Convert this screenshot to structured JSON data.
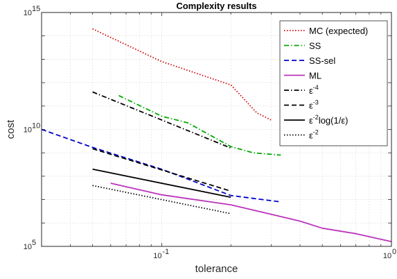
{
  "chart_data": {
    "type": "line",
    "title": "Complexity results",
    "xlabel": "tolerance",
    "ylabel": "cost",
    "xscale": "log",
    "yscale": "log",
    "xlim": [
      0.03,
      1
    ],
    "ylim": [
      100000,
      1000000000000000
    ],
    "x_ticks": [
      {
        "value": 0.1,
        "base": "10",
        "exp": "-1"
      },
      {
        "value": 1,
        "base": "10",
        "exp": "0"
      }
    ],
    "y_ticks": [
      {
        "value": 100000,
        "base": "10",
        "exp": "5"
      },
      {
        "value": 10000000000,
        "base": "10",
        "exp": "10"
      },
      {
        "value": 1000000000000000,
        "base": "10",
        "exp": "15"
      }
    ],
    "grid": true,
    "legend_position": "top-right",
    "series": [
      {
        "name": "MC (expected)",
        "color": "#cc0000",
        "dash": "dotted",
        "x": [
          0.05,
          0.1,
          0.2,
          0.26,
          0.3
        ],
        "y": [
          200000000000000,
          8000000000000,
          800000000000,
          50000000000,
          25000000000
        ]
      },
      {
        "name": "SS",
        "color": "#00aa00",
        "dash": "dashdot",
        "x": [
          0.065,
          0.1,
          0.13,
          0.2,
          0.25,
          0.33
        ],
        "y": [
          280000000000,
          37000000000,
          19000000000,
          1850000000,
          1000000000,
          800000000
        ]
      },
      {
        "name": "SS-sel",
        "color": "#0000cc",
        "dash": "dashed",
        "x": [
          0.03,
          0.05,
          0.1,
          0.2,
          0.33
        ],
        "y": [
          10000000000,
          1700000000,
          200000000,
          15000000,
          8000000
        ]
      },
      {
        "name": "ML",
        "color": "#bb33bb",
        "dash": "solid",
        "x": [
          0.06,
          0.1,
          0.2,
          0.4,
          0.5,
          0.7,
          1.0
        ],
        "y": [
          50000000,
          16000000,
          6000000,
          1200000,
          600000,
          350000,
          160000
        ]
      },
      {
        "name": "ε^-4",
        "label_base": "ε",
        "label_exp": "-4",
        "label_suffix": "",
        "color": "#000000",
        "dash": "dashdot",
        "x": [
          0.05,
          0.2
        ],
        "y": [
          400000000000,
          1600000000
        ]
      },
      {
        "name": "ε^-3",
        "label_base": "ε",
        "label_exp": "-3",
        "label_suffix": "",
        "color": "#000000",
        "dash": "dashed",
        "x": [
          0.05,
          0.2
        ],
        "y": [
          1500000000,
          23000000
        ]
      },
      {
        "name": "ε^-2log(1/ε)",
        "label_base": "ε",
        "label_exp": "-2",
        "label_suffix": "log(1/ε)",
        "color": "#000000",
        "dash": "solid",
        "x": [
          0.05,
          0.2
        ],
        "y": [
          200000000,
          12500000
        ]
      },
      {
        "name": "ε^-2",
        "label_base": "ε",
        "label_exp": "-2",
        "label_suffix": "",
        "color": "#000000",
        "dash": "dotted",
        "x": [
          0.05,
          0.2
        ],
        "y": [
          40000000,
          2500000
        ]
      }
    ]
  }
}
